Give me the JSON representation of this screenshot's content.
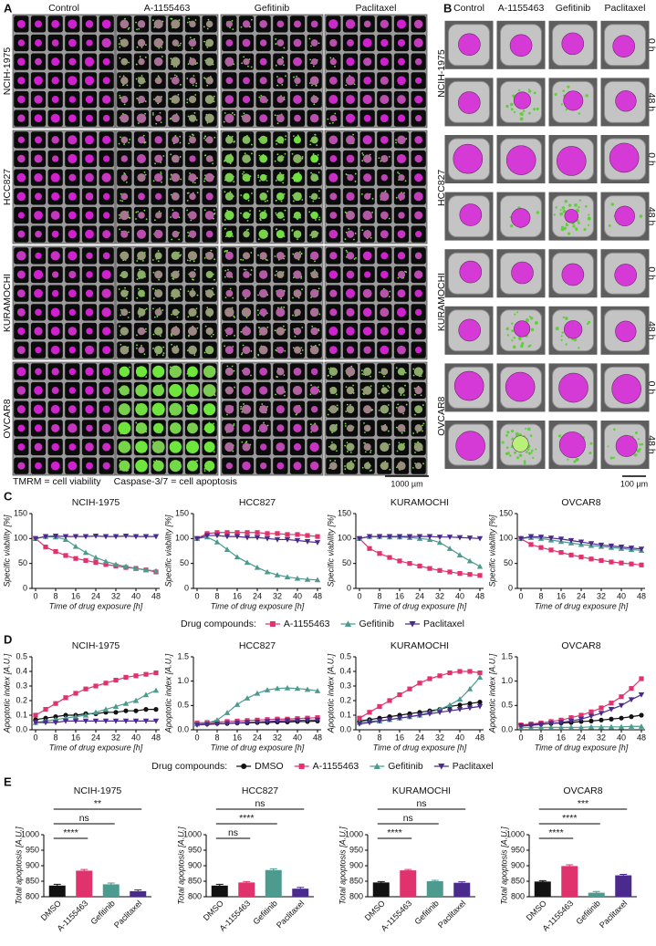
{
  "panel_labels": [
    "A",
    "B",
    "C",
    "D",
    "E"
  ],
  "panel_a": {
    "columns": [
      "Control",
      "A-1155463",
      "Gefitinib",
      "Paclitaxel"
    ],
    "rows": [
      "NCIH-1975",
      "HCC827",
      "KURAMOCHI",
      "OVCAR8"
    ],
    "legend": [
      {
        "stain": "TMRM",
        "meaning": "= cell viability"
      },
      {
        "stain": "Caspase-3/7",
        "meaning": "= cell apoptosis"
      }
    ],
    "scale_bar": "1000 µm"
  },
  "panel_b": {
    "columns": [
      "Control",
      "A-1155463",
      "Gefitinib",
      "Paclitaxel"
    ],
    "rows": [
      "NCIH-1975",
      "HCC827",
      "KURAMOCHI",
      "OVCAR8"
    ],
    "timepoints": [
      "0 h",
      "48 h"
    ],
    "scale_bar": "100 µm"
  },
  "legend_titles": [
    "Drug compounds:",
    "Drug compounds:"
  ],
  "chart_data": [
    {
      "type": "line",
      "title": "NCIH-1975",
      "x_label": "Time of drug exposure [h]",
      "y_label": "Specific viability [%]",
      "x": [
        0,
        4,
        8,
        12,
        16,
        20,
        24,
        28,
        32,
        36,
        40,
        44,
        48
      ],
      "xlim": [
        0,
        48
      ],
      "xticks": [
        0,
        8,
        16,
        24,
        32,
        40,
        48
      ],
      "ylim": [
        0,
        150
      ],
      "yticks": [
        0,
        50,
        100,
        150
      ],
      "series": [
        {
          "name": "A-1155463",
          "color": "#e0336e",
          "marker": "square",
          "values": [
            100,
            83,
            74,
            66,
            60,
            56,
            52,
            48,
            45,
            42,
            40,
            37,
            33
          ]
        },
        {
          "name": "Gefitinib",
          "color": "#4d9a8f",
          "marker": "triangle-up",
          "values": [
            100,
            104,
            103,
            98,
            84,
            72,
            62,
            54,
            48,
            44,
            40,
            37,
            35
          ]
        },
        {
          "name": "Paclitaxel",
          "color": "#4a2a8c",
          "marker": "triangle-down",
          "values": [
            100,
            104,
            105,
            104,
            104,
            104,
            105,
            104,
            104,
            105,
            104,
            104,
            104
          ]
        }
      ]
    },
    {
      "type": "line",
      "title": "HCC827",
      "x_label": "Time of drug exposure [h]",
      "y_label": "Specific viability [%]",
      "x": [
        0,
        4,
        8,
        12,
        16,
        20,
        24,
        28,
        32,
        36,
        40,
        44,
        48
      ],
      "xlim": [
        0,
        48
      ],
      "xticks": [
        0,
        8,
        16,
        24,
        32,
        40,
        48
      ],
      "ylim": [
        0,
        150
      ],
      "yticks": [
        0,
        50,
        100,
        150
      ],
      "series": [
        {
          "name": "A-1155463",
          "color": "#e0336e",
          "marker": "square",
          "values": [
            100,
            110,
            112,
            112,
            112,
            112,
            112,
            110,
            110,
            108,
            108,
            106,
            104
          ]
        },
        {
          "name": "Gefitinib",
          "color": "#4d9a8f",
          "marker": "triangle-up",
          "values": [
            100,
            103,
            93,
            78,
            63,
            52,
            42,
            33,
            27,
            23,
            20,
            18,
            17
          ]
        },
        {
          "name": "Paclitaxel",
          "color": "#4a2a8c",
          "marker": "triangle-down",
          "values": [
            100,
            106,
            106,
            104,
            104,
            102,
            102,
            100,
            98,
            98,
            96,
            94,
            92
          ]
        }
      ]
    },
    {
      "type": "line",
      "title": "KURAMOCHI",
      "x_label": "Time of drug exposure [h]",
      "y_label": "Specific viability [%]",
      "x": [
        0,
        4,
        8,
        12,
        16,
        20,
        24,
        28,
        32,
        36,
        40,
        44,
        48
      ],
      "xlim": [
        0,
        48
      ],
      "xticks": [
        0,
        8,
        16,
        24,
        32,
        40,
        48
      ],
      "ylim": [
        0,
        150
      ],
      "yticks": [
        0,
        50,
        100,
        150
      ],
      "series": [
        {
          "name": "A-1155463",
          "color": "#e0336e",
          "marker": "square",
          "values": [
            100,
            80,
            70,
            62,
            55,
            50,
            45,
            40,
            36,
            33,
            30,
            28,
            26
          ]
        },
        {
          "name": "Gefitinib",
          "color": "#4d9a8f",
          "marker": "triangle-up",
          "values": [
            100,
            104,
            104,
            103,
            103,
            102,
            100,
            98,
            92,
            80,
            67,
            55,
            44
          ]
        },
        {
          "name": "Paclitaxel",
          "color": "#4a2a8c",
          "marker": "triangle-down",
          "values": [
            100,
            104,
            104,
            104,
            104,
            104,
            104,
            104,
            103,
            103,
            102,
            101,
            100
          ]
        }
      ]
    },
    {
      "type": "line",
      "title": "OVCAR8",
      "x_label": "Time of drug exposure [h]",
      "y_label": "Specific viability [%]",
      "x": [
        0,
        4,
        8,
        12,
        16,
        20,
        24,
        28,
        32,
        36,
        40,
        44,
        48
      ],
      "xlim": [
        0,
        48
      ],
      "xticks": [
        0,
        8,
        16,
        24,
        32,
        40,
        48
      ],
      "ylim": [
        0,
        150
      ],
      "yticks": [
        0,
        50,
        100,
        150
      ],
      "series": [
        {
          "name": "A-1155463",
          "color": "#e0336e",
          "marker": "square",
          "values": [
            100,
            88,
            82,
            77,
            72,
            67,
            63,
            59,
            56,
            53,
            51,
            49,
            47
          ]
        },
        {
          "name": "Gefitinib",
          "color": "#4d9a8f",
          "marker": "triangle-up",
          "values": [
            100,
            102,
            100,
            97,
            94,
            91,
            88,
            86,
            84,
            82,
            80,
            78,
            76
          ]
        },
        {
          "name": "Paclitaxel",
          "color": "#4a2a8c",
          "marker": "triangle-down",
          "values": [
            100,
            104,
            103,
            101,
            99,
            96,
            93,
            90,
            87,
            85,
            83,
            81,
            79
          ]
        }
      ]
    },
    {
      "type": "line",
      "title": "NCIH-1975",
      "x_label": "Time of drug exposure [h]",
      "y_label": "Apoptotic index [A.U.]",
      "x": [
        0,
        4,
        8,
        12,
        16,
        20,
        24,
        28,
        32,
        36,
        40,
        44,
        48
      ],
      "xlim": [
        0,
        48
      ],
      "xticks": [
        0,
        8,
        16,
        24,
        32,
        40,
        48
      ],
      "ylim": [
        0,
        0.5
      ],
      "yticks": [
        {
          "value": 0,
          "label": "0.0"
        },
        0.1,
        0.2,
        0.3,
        0.4,
        0.5
      ],
      "series": [
        {
          "name": "DMSO",
          "color": "#111111",
          "marker": "circle",
          "values": [
            0.07,
            0.08,
            0.09,
            0.1,
            0.1,
            0.11,
            0.11,
            0.12,
            0.12,
            0.13,
            0.13,
            0.14,
            0.14
          ]
        },
        {
          "name": "A-1155463",
          "color": "#e0336e",
          "marker": "square",
          "values": [
            0.1,
            0.14,
            0.18,
            0.22,
            0.25,
            0.28,
            0.3,
            0.32,
            0.34,
            0.36,
            0.37,
            0.38,
            0.39
          ]
        },
        {
          "name": "Gefitinib",
          "color": "#4d9a8f",
          "marker": "triangle-up",
          "values": [
            0.05,
            0.06,
            0.07,
            0.08,
            0.09,
            0.1,
            0.12,
            0.14,
            0.16,
            0.18,
            0.2,
            0.24,
            0.27
          ]
        },
        {
          "name": "Paclitaxel",
          "color": "#4a2a8c",
          "marker": "triangle-down",
          "values": [
            0.05,
            0.05,
            0.05,
            0.06,
            0.06,
            0.06,
            0.06,
            0.06,
            0.06,
            0.06,
            0.06,
            0.06,
            0.06
          ]
        }
      ]
    },
    {
      "type": "line",
      "title": "HCC827",
      "x_label": "Time of drug exposure [h]",
      "y_label": "Apoptotic index [A.U.]",
      "x": [
        0,
        4,
        8,
        12,
        16,
        20,
        24,
        28,
        32,
        36,
        40,
        44,
        48
      ],
      "xlim": [
        0,
        48
      ],
      "xticks": [
        0,
        8,
        16,
        24,
        32,
        40,
        48
      ],
      "ylim": [
        0,
        1.5
      ],
      "yticks": [
        {
          "value": 0,
          "label": "0.0"
        },
        0.5,
        {
          "value": 1,
          "label": "1.0"
        },
        1.5
      ],
      "series": [
        {
          "name": "DMSO",
          "color": "#111111",
          "marker": "circle",
          "values": [
            0.12,
            0.12,
            0.13,
            0.13,
            0.14,
            0.14,
            0.15,
            0.15,
            0.16,
            0.16,
            0.17,
            0.17,
            0.18
          ]
        },
        {
          "name": "A-1155463",
          "color": "#e0336e",
          "marker": "square",
          "values": [
            0.14,
            0.15,
            0.16,
            0.17,
            0.18,
            0.19,
            0.2,
            0.21,
            0.22,
            0.22,
            0.23,
            0.24,
            0.25
          ]
        },
        {
          "name": "Gefitinib",
          "color": "#4d9a8f",
          "marker": "triangle-up",
          "values": [
            0.12,
            0.14,
            0.2,
            0.35,
            0.52,
            0.65,
            0.75,
            0.82,
            0.85,
            0.86,
            0.85,
            0.83,
            0.8
          ]
        },
        {
          "name": "Paclitaxel",
          "color": "#4a2a8c",
          "marker": "triangle-down",
          "values": [
            0.1,
            0.11,
            0.12,
            0.13,
            0.14,
            0.15,
            0.16,
            0.17,
            0.18,
            0.19,
            0.19,
            0.2,
            0.2
          ]
        }
      ]
    },
    {
      "type": "line",
      "title": "KURAMOCHI",
      "x_label": "Time of drug exposure [h]",
      "y_label": "Apoptotic index [A.U.]",
      "x": [
        0,
        4,
        8,
        12,
        16,
        20,
        24,
        28,
        32,
        36,
        40,
        44,
        48
      ],
      "xlim": [
        0,
        48
      ],
      "xticks": [
        0,
        8,
        16,
        24,
        32,
        40,
        48
      ],
      "ylim": [
        0,
        0.5
      ],
      "yticks": [
        {
          "value": 0,
          "label": "0.0"
        },
        0.1,
        0.2,
        0.3,
        0.4,
        0.5
      ],
      "series": [
        {
          "name": "DMSO",
          "color": "#111111",
          "marker": "circle",
          "values": [
            0.06,
            0.07,
            0.08,
            0.09,
            0.1,
            0.11,
            0.12,
            0.13,
            0.14,
            0.16,
            0.17,
            0.18,
            0.19
          ]
        },
        {
          "name": "A-1155463",
          "color": "#e0336e",
          "marker": "square",
          "values": [
            0.08,
            0.12,
            0.16,
            0.2,
            0.24,
            0.28,
            0.32,
            0.35,
            0.37,
            0.39,
            0.4,
            0.4,
            0.39
          ]
        },
        {
          "name": "Gefitinib",
          "color": "#4d9a8f",
          "marker": "triangle-up",
          "values": [
            0.05,
            0.06,
            0.06,
            0.07,
            0.08,
            0.09,
            0.1,
            0.12,
            0.14,
            0.17,
            0.21,
            0.28,
            0.36
          ]
        },
        {
          "name": "Paclitaxel",
          "color": "#4a2a8c",
          "marker": "triangle-down",
          "values": [
            0.04,
            0.05,
            0.06,
            0.07,
            0.08,
            0.09,
            0.1,
            0.11,
            0.12,
            0.13,
            0.14,
            0.15,
            0.16
          ]
        }
      ]
    },
    {
      "type": "line",
      "title": "OVCAR8",
      "x_label": "Time of drug exposure [h]",
      "y_label": "Apoptotic index [A.U.]",
      "x": [
        0,
        4,
        8,
        12,
        16,
        20,
        24,
        28,
        32,
        36,
        40,
        44,
        48
      ],
      "xlim": [
        0,
        48
      ],
      "xticks": [
        0,
        8,
        16,
        24,
        32,
        40,
        48
      ],
      "ylim": [
        0,
        1.5
      ],
      "yticks": [
        {
          "value": 0,
          "label": "0.0"
        },
        0.5,
        {
          "value": 1,
          "label": "1.0"
        },
        1.5
      ],
      "series": [
        {
          "name": "DMSO",
          "color": "#111111",
          "marker": "circle",
          "values": [
            0.1,
            0.11,
            0.12,
            0.13,
            0.14,
            0.15,
            0.17,
            0.18,
            0.2,
            0.22,
            0.24,
            0.27,
            0.3
          ]
        },
        {
          "name": "A-1155463",
          "color": "#e0336e",
          "marker": "square",
          "values": [
            0.1,
            0.12,
            0.14,
            0.17,
            0.2,
            0.25,
            0.3,
            0.37,
            0.45,
            0.55,
            0.68,
            0.85,
            1.05
          ]
        },
        {
          "name": "Gefitinib",
          "color": "#4d9a8f",
          "marker": "triangle-up",
          "values": [
            0.05,
            0.05,
            0.05,
            0.05,
            0.05,
            0.05,
            0.05,
            0.06,
            0.06,
            0.06,
            0.06,
            0.07,
            0.07
          ]
        },
        {
          "name": "Paclitaxel",
          "color": "#4a2a8c",
          "marker": "triangle-down",
          "values": [
            0.08,
            0.09,
            0.11,
            0.13,
            0.15,
            0.18,
            0.22,
            0.28,
            0.34,
            0.42,
            0.5,
            0.62,
            0.72
          ]
        }
      ]
    },
    {
      "type": "bar",
      "title": "NCIH-1975",
      "y_label": "Total apoptosis [A.U.]",
      "categories": [
        "DMSO",
        "A-1155463",
        "Gefitinib",
        "Paclitaxel"
      ],
      "values": [
        836,
        884,
        840,
        818
      ],
      "errors": [
        4,
        4,
        4,
        4
      ],
      "colors": [
        "#111111",
        "#e0336e",
        "#4d9a8f",
        "#4a2a8c"
      ],
      "ylim": [
        800,
        1000
      ],
      "yticks": [
        800,
        850,
        900,
        950,
        1000
      ],
      "significance": [
        "****",
        "ns",
        "**"
      ]
    },
    {
      "type": "bar",
      "title": "HCC827",
      "y_label": "Total apoptosis [A.U.]",
      "categories": [
        "DMSO",
        "A-1155463",
        "Gefitinib",
        "Paclitaxel"
      ],
      "values": [
        836,
        846,
        886,
        826
      ],
      "errors": [
        4,
        3,
        4,
        4
      ],
      "colors": [
        "#111111",
        "#e0336e",
        "#4d9a8f",
        "#4a2a8c"
      ],
      "ylim": [
        800,
        1000
      ],
      "yticks": [
        800,
        850,
        900,
        950,
        1000
      ],
      "significance": [
        "ns",
        "****",
        "ns"
      ]
    },
    {
      "type": "bar",
      "title": "KURAMOCHI",
      "y_label": "Total apoptosis [A.U.]",
      "categories": [
        "DMSO",
        "A-1155463",
        "Gefitinib",
        "Paclitaxel"
      ],
      "values": [
        846,
        885,
        850,
        845
      ],
      "errors": [
        3,
        3,
        3,
        3
      ],
      "colors": [
        "#111111",
        "#e0336e",
        "#4d9a8f",
        "#4a2a8c"
      ],
      "ylim": [
        800,
        1000
      ],
      "yticks": [
        800,
        850,
        900,
        950,
        1000
      ],
      "significance": [
        "****",
        "ns",
        "ns"
      ]
    },
    {
      "type": "bar",
      "title": "OVCAR8",
      "y_label": "Total apoptosis [A.U.]",
      "categories": [
        "DMSO",
        "A-1155463",
        "Gefitinib",
        "Paclitaxel"
      ],
      "values": [
        849,
        899,
        813,
        869
      ],
      "errors": [
        3,
        4,
        4,
        3
      ],
      "colors": [
        "#111111",
        "#e0336e",
        "#4d9a8f",
        "#4a2a8c"
      ],
      "ylim": [
        800,
        1000
      ],
      "yticks": [
        800,
        850,
        900,
        950,
        1000
      ],
      "significance": [
        "****",
        "****",
        "***"
      ]
    }
  ]
}
